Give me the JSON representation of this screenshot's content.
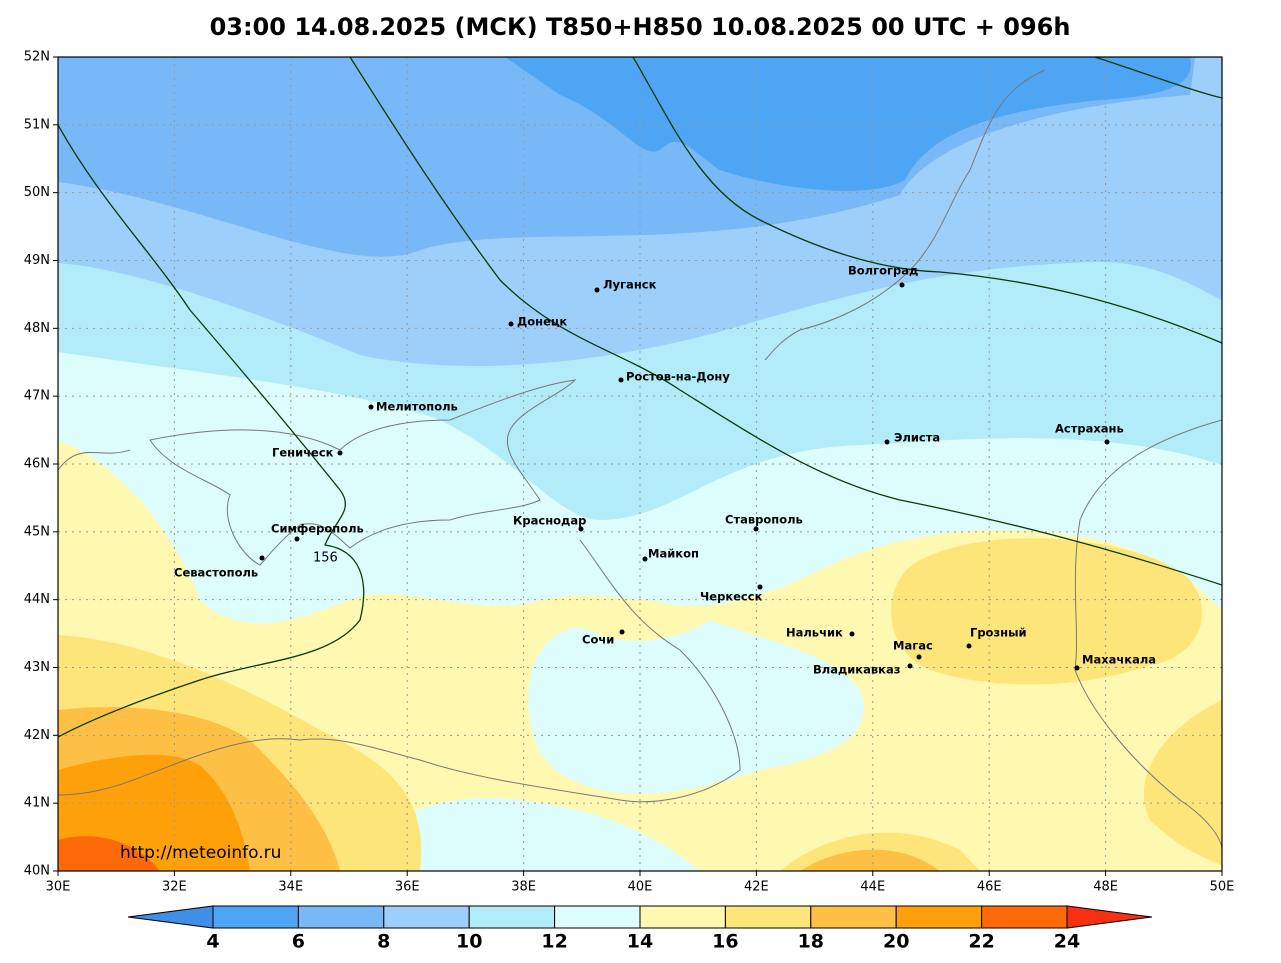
{
  "title": "03:00 14.08.2025 (МСК) T850+H850 10.08.2025 00 UTC + 096h",
  "lon_labels": [
    "30E",
    "32E",
    "34E",
    "36E",
    "38E",
    "40E",
    "42E",
    "44E",
    "46E",
    "48E",
    "50E"
  ],
  "lat_labels": [
    "52N",
    "51N",
    "50N",
    "49N",
    "48N",
    "47N",
    "46N",
    "45N",
    "44N",
    "43N",
    "42N",
    "41N",
    "40N"
  ],
  "cities": [
    "Луганск",
    "Донецк",
    "Волгоград",
    "Ростов-на-Дону",
    "Мелитополь",
    "Геническ",
    "Элиста",
    "Астрахань",
    "Симферополь",
    "Севастополь",
    "Краснодар",
    "Ставрополь",
    "Майкоп",
    "Черкесск",
    "Сочи",
    "Нальчик",
    "Магас",
    "Грозный",
    "Владикавказ",
    "Махачкала"
  ],
  "contour_label": "156",
  "credit": "http://meteoinfo.ru",
  "colorbar_labels": [
    "4",
    "6",
    "8",
    "10",
    "12",
    "14",
    "16",
    "18",
    "20",
    "22",
    "24"
  ]
}
